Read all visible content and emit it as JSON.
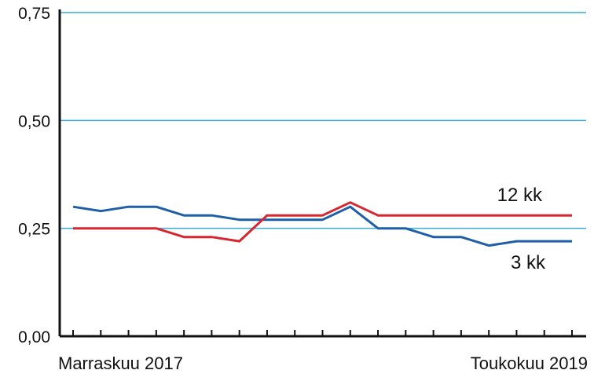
{
  "chart_data": {
    "type": "line",
    "title": "",
    "xlabel": "",
    "ylabel": "",
    "ylim": [
      0,
      0.75
    ],
    "yticks": [
      "0,00",
      "0,25",
      "0,50",
      "0,75"
    ],
    "x_start_label": "Marraskuu 2017",
    "x_end_label": "Toukokuu 2019",
    "grid": true,
    "colors": {
      "grid": "#3aaad6",
      "axis": "#111111"
    },
    "series": [
      {
        "name": "3 kk",
        "color": "#1f5fa8",
        "values": [
          0.3,
          0.29,
          0.3,
          0.3,
          0.28,
          0.28,
          0.27,
          0.27,
          0.27,
          0.27,
          0.3,
          0.25,
          0.25,
          0.23,
          0.23,
          0.21,
          0.22,
          0.22,
          0.22
        ]
      },
      {
        "name": "12 kk",
        "color": "#d8262e",
        "values": [
          0.25,
          0.25,
          0.25,
          0.25,
          0.23,
          0.23,
          0.22,
          0.28,
          0.28,
          0.28,
          0.31,
          0.28,
          0.28,
          0.28,
          0.28,
          0.28,
          0.28,
          0.28,
          0.28
        ]
      }
    ]
  }
}
